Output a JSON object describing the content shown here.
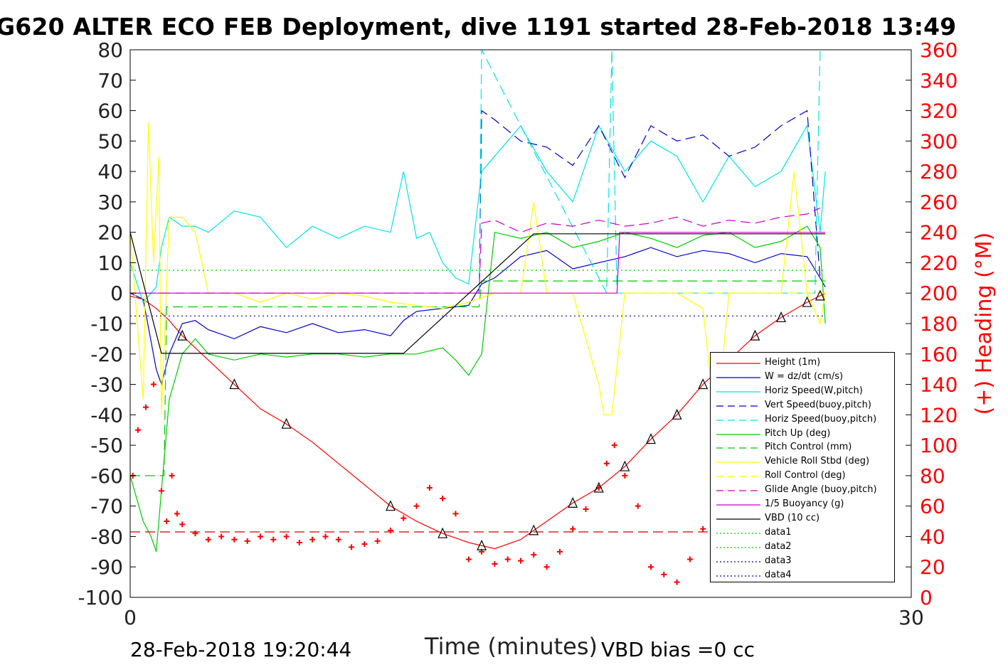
{
  "title": "G620 ALTER ECO FEB Deployment, dive 1191 started 28-Feb-2018 13:49",
  "footer": {
    "timestamp": "28-Feb-2018 19:20:44",
    "vbd_bias": "VBD bias =0 cc"
  },
  "chart_data": {
    "type": "line",
    "xlabel": "Time (minutes)",
    "ylabel_right": "(+) Heading (°M)",
    "xlim": [
      0,
      30
    ],
    "xticks": [
      "0",
      "30"
    ],
    "ylim_left": [
      -100,
      80
    ],
    "yticks_left": [
      "80",
      "70",
      "60",
      "50",
      "40",
      "30",
      "20",
      "10",
      "0",
      "-10",
      "-20",
      "-30",
      "-40",
      "-50",
      "-60",
      "-70",
      "-80",
      "-90",
      "-100"
    ],
    "ylim_right": [
      0,
      360
    ],
    "yticks_right": [
      "360",
      "340",
      "320",
      "300",
      "280",
      "260",
      "240",
      "220",
      "200",
      "180",
      "160",
      "140",
      "120",
      "100",
      "80",
      "60",
      "40",
      "20",
      "0"
    ],
    "grid": false,
    "legend_position": "lower-right",
    "colors": {
      "height": "#ff0000",
      "w": "#0000cc",
      "horiz_w": "#00e5e5",
      "vert_buoy": "#0000cc",
      "horiz_buoy": "#00e5e5",
      "pitch_up": "#00cc00",
      "pitch_ctrl": "#00cc00",
      "roll": "#ffff00",
      "roll_ctrl": "#ffff00",
      "glide": "#cc00cc",
      "buoy": "#cc00cc",
      "vbd": "#000000",
      "heading": "#ff0000"
    },
    "legend": [
      {
        "label": "Height (1m)",
        "color": "#ff0000",
        "style": "solid"
      },
      {
        "label": "W = dz/dt (cm/s)",
        "color": "#0000cc",
        "style": "solid"
      },
      {
        "label": "Horiz Speed(W,pitch)",
        "color": "#00e5e5",
        "style": "solid"
      },
      {
        "label": "Vert Speed(buoy,pitch)",
        "color": "#0000cc",
        "style": "dashed"
      },
      {
        "label": "Horiz Speed(buoy,pitch)",
        "color": "#00e5e5",
        "style": "dashed"
      },
      {
        "label": "Pitch Up (deg)",
        "color": "#00cc00",
        "style": "solid"
      },
      {
        "label": "Pitch Control (mm)",
        "color": "#00cc00",
        "style": "dashed"
      },
      {
        "label": "Vehicle Roll Stbd (deg)",
        "color": "#ffff00",
        "style": "solid"
      },
      {
        "label": "Roll Control (deg)",
        "color": "#ffff00",
        "style": "dashed"
      },
      {
        "label": "Glide Angle (buoy,pitch)",
        "color": "#cc00cc",
        "style": "dashed"
      },
      {
        "label": "1/5 Buoyancy (g)",
        "color": "#cc00cc",
        "style": "solid"
      },
      {
        "label": "VBD (10 cc)",
        "color": "#000000",
        "style": "solid"
      },
      {
        "label": "data1",
        "color": "#00cc00",
        "style": "dotted"
      },
      {
        "label": "data2",
        "color": "#00cc00",
        "style": "dotted"
      },
      {
        "label": "data3",
        "color": "#0000cc",
        "style": "dotted"
      },
      {
        "label": "data4",
        "color": "#0000cc",
        "style": "dotted"
      }
    ],
    "series": [
      {
        "key": "height",
        "style": "solid",
        "x": [
          0,
          0.5,
          1,
          1.5,
          2,
          2.5,
          3,
          4,
          5,
          6,
          7,
          8,
          9,
          10,
          11,
          12,
          13,
          14,
          15,
          16,
          17,
          18,
          19,
          20,
          21,
          22,
          23,
          24,
          25,
          26,
          26.7
        ],
        "y": [
          -1,
          -2,
          -5,
          -9,
          -14,
          -18,
          -22,
          -30,
          -38,
          -43,
          -49,
          -56,
          -63,
          -70,
          -75,
          -79,
          -82,
          -84,
          -81,
          -75,
          -69,
          -64,
          -57,
          -48,
          -40,
          -30,
          -22,
          -14,
          -8,
          -3,
          0
        ]
      },
      {
        "key": "w",
        "style": "solid",
        "x": [
          0,
          0.5,
          1,
          1.2,
          1.5,
          2,
          2.5,
          3,
          4,
          5,
          6,
          7,
          8,
          9,
          10,
          10.5,
          11,
          12,
          13,
          13.5,
          14,
          15,
          16,
          17,
          18,
          19,
          20,
          21,
          22,
          23,
          24,
          25,
          26,
          26.5,
          26.7
        ],
        "y": [
          0,
          -2,
          -25,
          -30,
          -20,
          -10,
          -9,
          -12,
          -15,
          -11,
          -13,
          -10,
          -13,
          -12,
          -14,
          -9,
          -6,
          -5,
          -4,
          3,
          5,
          12,
          14,
          8,
          10,
          12,
          15,
          12,
          14,
          13,
          10,
          13,
          12,
          5,
          2
        ]
      },
      {
        "key": "horiz_w",
        "style": "solid",
        "x": [
          0,
          0.5,
          1,
          1.2,
          1.5,
          2,
          2.5,
          3,
          4,
          5,
          6,
          7,
          8,
          9,
          10,
          10.5,
          11,
          11.5,
          12,
          12.5,
          13,
          13.5,
          14,
          15,
          16,
          17,
          18,
          19,
          20,
          21,
          22,
          23,
          24,
          25,
          26,
          26.5,
          26.7
        ],
        "y": [
          10,
          -3,
          2,
          15,
          25,
          22,
          22,
          20,
          27,
          25,
          15,
          22,
          18,
          22,
          20,
          40,
          18,
          20,
          10,
          5,
          3,
          40,
          45,
          55,
          40,
          30,
          55,
          40,
          50,
          45,
          30,
          45,
          35,
          40,
          55,
          20,
          40
        ]
      },
      {
        "key": "vert_buoy",
        "style": "dashed",
        "x": [
          13.4,
          13.5,
          14,
          15,
          16,
          17,
          18,
          19,
          20,
          21,
          22,
          23,
          24,
          25,
          26,
          26.5
        ],
        "y": [
          0,
          60,
          57,
          50,
          48,
          42,
          55,
          38,
          55,
          50,
          52,
          45,
          48,
          55,
          60,
          5
        ]
      },
      {
        "key": "horiz_buoy",
        "style": "dashed",
        "x": [
          13.4,
          13.5,
          18.3,
          18.5,
          18.7,
          26.3,
          26.5
        ],
        "y": [
          0,
          80,
          0,
          80,
          0,
          0,
          80
        ]
      },
      {
        "key": "pitch_up",
        "style": "solid",
        "x": [
          0,
          0.5,
          0.8,
          1,
          1.5,
          2,
          2.5,
          3,
          4,
          5,
          6,
          7,
          8,
          9,
          10,
          11,
          12,
          12.5,
          13,
          13.5,
          14,
          15,
          16,
          17,
          18,
          19,
          20,
          21,
          22,
          23,
          24,
          25,
          26,
          26.5,
          26.7
        ],
        "y": [
          -60,
          -75,
          -80,
          -85,
          -35,
          -20,
          -15,
          -20,
          -22,
          -20,
          -21,
          -20,
          -20,
          -21,
          -20,
          -20,
          -18,
          -22,
          -27,
          -20,
          20,
          18,
          20,
          15,
          17,
          20,
          18,
          15,
          19,
          20,
          15,
          17,
          22,
          15,
          -10
        ]
      },
      {
        "key": "pitch_ctrl",
        "style": "dashed",
        "x": [
          0,
          1.3,
          1.4,
          13.4,
          13.5,
          26.7
        ],
        "y": [
          -60,
          -60,
          -4.5,
          -4.5,
          4,
          4
        ]
      },
      {
        "key": "roll",
        "style": "solid",
        "x": [
          0,
          0.5,
          0.7,
          0.9,
          1.1,
          1.2,
          1.5,
          2,
          2.5,
          3,
          4,
          5,
          6,
          7,
          8,
          9,
          10,
          11,
          12,
          13,
          14,
          15,
          15.5,
          16,
          17,
          18,
          18.2,
          18.5,
          19,
          20,
          21,
          22,
          22.5,
          23,
          24,
          25,
          25.5,
          26,
          26.5,
          26.7
        ],
        "y": [
          20,
          -35,
          56,
          10,
          45,
          -40,
          25,
          25,
          20,
          0,
          0,
          -3,
          0,
          -2,
          0,
          -1,
          -3,
          -4,
          -5,
          -3,
          0,
          0,
          30,
          0,
          0,
          -30,
          -40,
          -40,
          0,
          0,
          0,
          -5,
          -45,
          0,
          0,
          0,
          40,
          0,
          -10,
          0
        ]
      },
      {
        "key": "roll_ctrl",
        "style": "dashed",
        "x": [
          0,
          26.7
        ],
        "y": [
          0,
          0
        ]
      },
      {
        "key": "glide",
        "style": "dashed",
        "x": [
          0,
          13.4,
          13.5,
          14,
          15,
          16,
          17,
          18,
          19,
          20,
          21,
          22,
          23,
          24,
          25,
          26,
          26.5
        ],
        "y": [
          0,
          0,
          23,
          24,
          20,
          23,
          22,
          24,
          22,
          23,
          25,
          22,
          24,
          23,
          25,
          26,
          28
        ]
      },
      {
        "key": "buoy",
        "style": "solid",
        "x": [
          0,
          18.7,
          18.8,
          26.7
        ],
        "y": [
          0,
          0,
          20,
          20
        ]
      },
      {
        "key": "vbd",
        "style": "solid",
        "x": [
          0,
          1.2,
          10.5,
          15.5,
          26.7
        ],
        "y": [
          20,
          -19.8,
          -19.8,
          19.5,
          19.5
        ]
      },
      {
        "key": "heading",
        "style": "markers",
        "axis": "right",
        "x": [
          0.1,
          0.3,
          0.6,
          0.9,
          1.2,
          1.4,
          1.6,
          1.8,
          2,
          2.5,
          3,
          3.5,
          4,
          4.5,
          5,
          5.5,
          6,
          6.5,
          7,
          7.5,
          8,
          8.5,
          9,
          9.5,
          10,
          10.5,
          11,
          11.5,
          12,
          12.5,
          13,
          13.5,
          14,
          14.5,
          15,
          15.5,
          16,
          16.5,
          17,
          17.5,
          18,
          18.3,
          18.6,
          19,
          19.5,
          20,
          20.5,
          21,
          21.5,
          22,
          22.5,
          23,
          23.5,
          24,
          24.5,
          25,
          25.5,
          26,
          26.5,
          26.7
        ],
        "y": [
          80,
          110,
          125,
          140,
          70,
          50,
          80,
          55,
          48,
          42,
          38,
          40,
          38,
          37,
          40,
          38,
          40,
          36,
          38,
          40,
          38,
          33,
          35,
          37,
          44,
          52,
          60,
          72,
          65,
          55,
          25,
          30,
          22,
          25,
          24,
          28,
          20,
          30,
          45,
          58,
          72,
          88,
          100,
          80,
          60,
          20,
          15,
          10,
          25,
          45,
          75,
          70,
          68,
          65,
          70,
          65,
          60,
          60,
          55,
          60
        ]
      },
      {
        "key": "data2",
        "style": "dotted",
        "x": [
          0,
          26.7
        ],
        "y": [
          7.5,
          7.5
        ]
      },
      {
        "key": "data4",
        "style": "dotted",
        "x": [
          0,
          26.7
        ],
        "y": [
          -7.5,
          -7.5
        ]
      },
      {
        "key": "heading_ref",
        "style": "dashed",
        "axis": "right",
        "x": [
          0,
          26.7
        ],
        "y": [
          43,
          43
        ]
      }
    ]
  }
}
